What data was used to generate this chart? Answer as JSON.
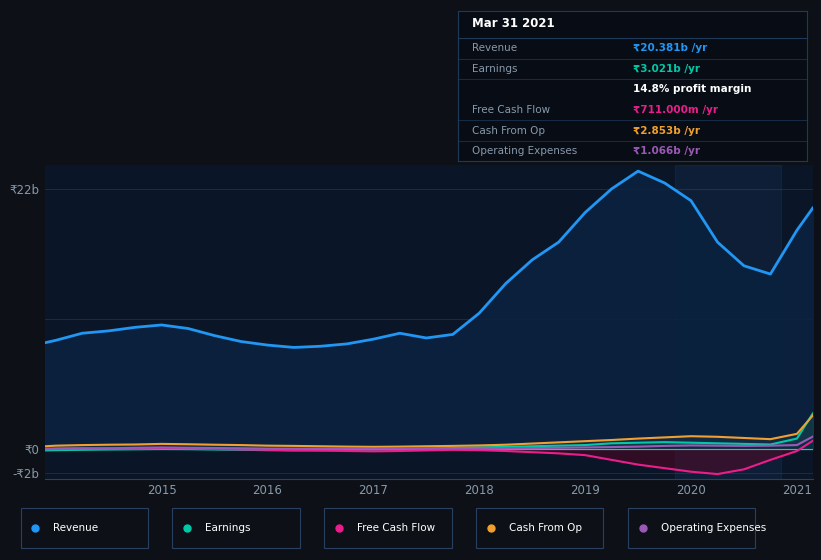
{
  "bg_color": "#0d1117",
  "plot_bg_color": "#0a1628",
  "grid_color": "#1e3050",
  "ylim": [
    -2500000000.0,
    24000000000.0
  ],
  "years": [
    2013.9,
    2014.0,
    2014.25,
    2014.5,
    2014.75,
    2015.0,
    2015.25,
    2015.5,
    2015.75,
    2016.0,
    2016.25,
    2016.5,
    2016.75,
    2017.0,
    2017.25,
    2017.5,
    2017.75,
    2018.0,
    2018.25,
    2018.5,
    2018.75,
    2019.0,
    2019.25,
    2019.5,
    2019.75,
    2020.0,
    2020.25,
    2020.5,
    2020.75,
    2021.0,
    2021.15
  ],
  "revenue": [
    9000000000.0,
    9200000000.0,
    9800000000.0,
    10000000000.0,
    10300000000.0,
    10500000000.0,
    10200000000.0,
    9600000000.0,
    9100000000.0,
    8800000000.0,
    8600000000.0,
    8700000000.0,
    8900000000.0,
    9300000000.0,
    9800000000.0,
    9400000000.0,
    9700000000.0,
    11500000000.0,
    14000000000.0,
    16000000000.0,
    17500000000.0,
    20000000000.0,
    22000000000.0,
    23500000000.0,
    22500000000.0,
    21000000000.0,
    17500000000.0,
    15500000000.0,
    14800000000.0,
    18500000000.0,
    20381000000.0
  ],
  "earnings": [
    -100000000.0,
    -80000000.0,
    -50000000.0,
    -20000000.0,
    0.0,
    20000000.0,
    10000000.0,
    -20000000.0,
    -50000000.0,
    -80000000.0,
    -100000000.0,
    -80000000.0,
    -50000000.0,
    -30000000.0,
    0.0,
    50000000.0,
    100000000.0,
    150000000.0,
    200000000.0,
    250000000.0,
    300000000.0,
    350000000.0,
    500000000.0,
    550000000.0,
    600000000.0,
    550000000.0,
    500000000.0,
    450000000.0,
    400000000.0,
    900000000.0,
    3021000000.0
  ],
  "free_cash_flow": [
    50000000.0,
    80000000.0,
    100000000.0,
    80000000.0,
    50000000.0,
    100000000.0,
    80000000.0,
    20000000.0,
    -20000000.0,
    -50000000.0,
    -80000000.0,
    -120000000.0,
    -150000000.0,
    -180000000.0,
    -150000000.0,
    -100000000.0,
    -50000000.0,
    -80000000.0,
    -150000000.0,
    -250000000.0,
    -350000000.0,
    -500000000.0,
    -900000000.0,
    -1300000000.0,
    -1600000000.0,
    -1900000000.0,
    -2100000000.0,
    -1700000000.0,
    -900000000.0,
    -150000000.0,
    711000000.0
  ],
  "cash_from_op": [
    250000000.0,
    300000000.0,
    350000000.0,
    380000000.0,
    400000000.0,
    450000000.0,
    420000000.0,
    380000000.0,
    350000000.0,
    300000000.0,
    280000000.0,
    250000000.0,
    220000000.0,
    200000000.0,
    220000000.0,
    250000000.0,
    280000000.0,
    320000000.0,
    380000000.0,
    480000000.0,
    580000000.0,
    680000000.0,
    780000000.0,
    900000000.0,
    1000000000.0,
    1100000000.0,
    1050000000.0,
    950000000.0,
    850000000.0,
    1300000000.0,
    2853000000.0
  ],
  "operating_expenses": [
    0.0,
    20000000.0,
    50000000.0,
    80000000.0,
    120000000.0,
    150000000.0,
    120000000.0,
    100000000.0,
    80000000.0,
    50000000.0,
    50000000.0,
    50000000.0,
    60000000.0,
    60000000.0,
    60000000.0,
    50000000.0,
    60000000.0,
    60000000.0,
    80000000.0,
    100000000.0,
    120000000.0,
    150000000.0,
    180000000.0,
    220000000.0,
    280000000.0,
    320000000.0,
    300000000.0,
    280000000.0,
    300000000.0,
    350000000.0,
    1066000000.0
  ],
  "revenue_color": "#2196f3",
  "earnings_color": "#00c9a7",
  "free_cash_flow_color": "#e91e8c",
  "cash_from_op_color": "#f0a030",
  "operating_expenses_color": "#9b59b6",
  "info_table": {
    "title": "Mar 31 2021",
    "rows": [
      {
        "label": "Revenue",
        "value": "₹20.381b /yr",
        "value_color": "#2196f3"
      },
      {
        "label": "Earnings",
        "value": "₹3.021b /yr",
        "value_color": "#00c9a7",
        "extra": "14.8% profit margin",
        "extra_color": "#ffffff"
      },
      {
        "label": "Free Cash Flow",
        "value": "₹711.000m /yr",
        "value_color": "#e91e8c"
      },
      {
        "label": "Cash From Op",
        "value": "₹2.853b /yr",
        "value_color": "#f0a030"
      },
      {
        "label": "Operating Expenses",
        "value": "₹1.066b /yr",
        "value_color": "#9b59b6"
      }
    ]
  },
  "legend_items": [
    {
      "label": "Revenue",
      "color": "#2196f3"
    },
    {
      "label": "Earnings",
      "color": "#00c9a7"
    },
    {
      "label": "Free Cash Flow",
      "color": "#e91e8c"
    },
    {
      "label": "Cash From Op",
      "color": "#f0a030"
    },
    {
      "label": "Operating Expenses",
      "color": "#9b59b6"
    }
  ]
}
